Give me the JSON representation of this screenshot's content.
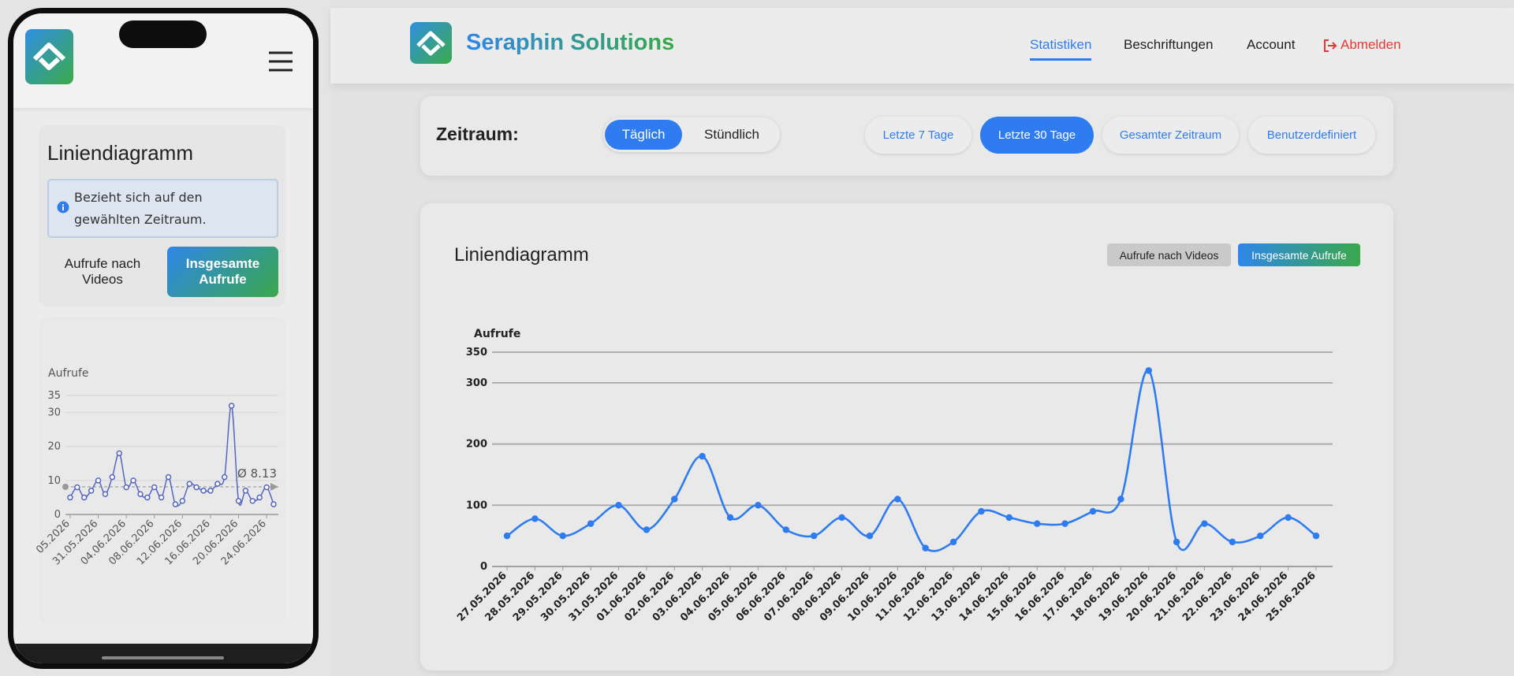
{
  "header": {
    "brand": "Seraphin Solutions",
    "nav": [
      "Statistiken",
      "Beschriftungen",
      "Account",
      "Abmelden"
    ]
  },
  "filters": {
    "label": "Zeitraum:",
    "granularity": [
      "Täglich",
      "Stündlich"
    ],
    "ranges": [
      "Letzte 7 Tage",
      "Letzte 30 Tage",
      "Gesamter Zeitraum",
      "Benutzerdefiniert"
    ]
  },
  "panel": {
    "title": "Liniendiagramm",
    "buttons": [
      "Aufrufe nach Videos",
      "Insgesamte Aufrufe"
    ],
    "chart": {
      "type": "line",
      "y_label": "Aufrufe",
      "color": "#2f7cf0",
      "grid": true,
      "ylim": [
        0,
        350
      ],
      "yticks": [
        0,
        100,
        200,
        300,
        350
      ],
      "categories": [
        "27.05.2026",
        "28.05.2026",
        "29.05.2026",
        "30.05.2026",
        "31.05.2026",
        "01.06.2026",
        "02.06.2026",
        "03.06.2026",
        "04.06.2026",
        "05.06.2026",
        "06.06.2026",
        "07.06.2026",
        "08.06.2026",
        "09.06.2026",
        "10.06.2026",
        "11.06.2026",
        "12.06.2026",
        "13.06.2026",
        "14.06.2026",
        "15.06.2026",
        "16.06.2026",
        "17.06.2026",
        "18.06.2026",
        "19.06.2026",
        "20.06.2026",
        "21.06.2026",
        "22.06.2026",
        "23.06.2026",
        "24.06.2026",
        "25.06.2026"
      ],
      "values": [
        50,
        78,
        50,
        70,
        100,
        60,
        110,
        180,
        80,
        100,
        60,
        50,
        80,
        50,
        110,
        30,
        40,
        90,
        80,
        70,
        70,
        90,
        110,
        320,
        40,
        70,
        40,
        50,
        80,
        50
      ]
    }
  },
  "phone": {
    "title": "Liniendiagramm",
    "info": "Bezieht sich auf den gewählten Zeitraum.",
    "buttons": [
      "Aufrufe nach Videos",
      "Insgesamte Aufrufe"
    ],
    "chart": {
      "type": "line",
      "y_label": "Aufrufe",
      "color": "#5566c0",
      "grid": true,
      "ylim": [
        0,
        35
      ],
      "yticks": [
        0,
        10,
        20,
        30,
        35
      ],
      "categories": [
        "05.2026",
        null,
        null,
        null,
        "31.05.2026",
        null,
        null,
        null,
        "04.06.2026",
        null,
        null,
        null,
        "08.06.2026",
        null,
        null,
        null,
        "12.06.2026",
        null,
        null,
        null,
        "16.06.2026",
        null,
        null,
        null,
        "20.06.2026",
        null,
        null,
        null,
        "24.06.2026",
        null
      ],
      "values": [
        5,
        8,
        5,
        7,
        10,
        6,
        11,
        18,
        8,
        10,
        6,
        5,
        8,
        5,
        11,
        3,
        4,
        9,
        8,
        7,
        7,
        9,
        11,
        32,
        4,
        7,
        4,
        5,
        8,
        3
      ],
      "average": {
        "value": 8.13,
        "label": "Ø 8.13"
      }
    }
  }
}
